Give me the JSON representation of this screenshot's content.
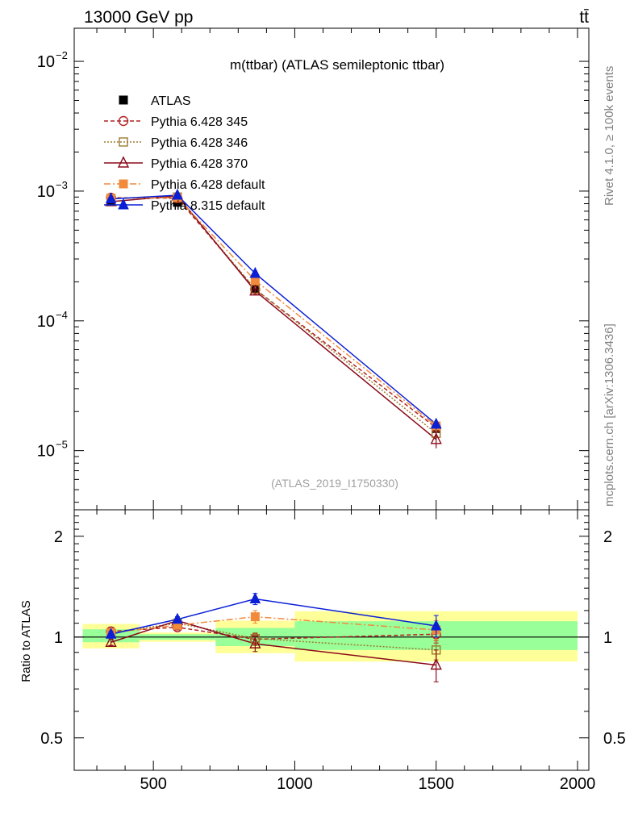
{
  "header": {
    "energy_label": "13000 GeV pp",
    "process_label": "tt̄"
  },
  "side_labels": {
    "rivet": "Rivet 4.1.0, ≥ 100k events",
    "mcplots": "mcplots.cern.ch [arXiv:1306.3436]"
  },
  "chart_data": [
    {
      "type": "line",
      "panel": "main",
      "title": "m(ttbar) (ATLAS semileptonic ttbar)",
      "watermark": "(ATLAS_2019_I1750330)",
      "yscale": "log",
      "xlim": [
        220,
        2040
      ],
      "ylim": [
        3.5e-06,
        0.018
      ],
      "ytick_values": [
        0.01,
        0.001,
        0.0001,
        1e-05
      ],
      "ytick_labels": [
        {
          "base": "10",
          "exp": "−2"
        },
        {
          "base": "10",
          "exp": "−3"
        },
        {
          "base": "10",
          "exp": "−4"
        },
        {
          "base": "10",
          "exp": "−5"
        }
      ],
      "x": [
        350,
        585,
        860,
        1500
      ],
      "series": [
        {
          "name": "ATLAS",
          "color": "#000000",
          "dash": "",
          "marker": "square-filled",
          "values": [
            0.00085,
            0.00082,
            0.000178,
            1.48e-05
          ],
          "err": [
            3e-05,
            3e-05,
            1.2e-05,
            2.5e-06
          ]
        },
        {
          "name": "Pythia 6.428 345",
          "color": "#b22222",
          "dash": "5,3",
          "marker": "circle-open",
          "values": [
            0.00089,
            0.00088,
            0.000175,
            1.5e-05
          ],
          "err": [
            2e-05,
            2e-05,
            8e-06,
            1.5e-06
          ]
        },
        {
          "name": "Pythia 6.428 346",
          "color": "#9c7a2d",
          "dash": "2,2",
          "marker": "square-open",
          "values": [
            0.00088,
            0.0009,
            0.000176,
            1.36e-05
          ],
          "err": [
            2e-05,
            2e-05,
            8e-06,
            1.5e-06
          ]
        },
        {
          "name": "Pythia 6.428 370",
          "color": "#8b0a1a",
          "dash": "",
          "marker": "triangle-open",
          "values": [
            0.00083,
            0.00092,
            0.00017,
            1.22e-05
          ],
          "err": [
            2e-05,
            2e-05,
            8e-06,
            1.8e-06
          ]
        },
        {
          "name": "Pythia 6.428 default",
          "color": "#f28a3c",
          "dash": "8,3,2,3",
          "marker": "square-filled",
          "values": [
            0.00088,
            0.00089,
            0.000205,
            1.55e-05
          ],
          "err": [
            2e-05,
            2e-05,
            9e-06,
            1.5e-06
          ]
        },
        {
          "name": "Pythia 8.315 default",
          "color": "#0a1fd6",
          "dash": "",
          "marker": "triangle-filled",
          "values": [
            0.00087,
            0.00093,
            0.000232,
            1.6e-05
          ],
          "err": [
            2e-05,
            2e-05,
            9e-06,
            1.5e-06
          ]
        }
      ]
    },
    {
      "type": "line",
      "panel": "ratio",
      "ylabel": "Ratio to ATLAS",
      "yscale": "log",
      "xlim": [
        220,
        2040
      ],
      "ylim": [
        0.4,
        2.4
      ],
      "ytick_values": [
        2,
        1,
        0.5
      ],
      "ytick_labels": [
        "2",
        "1",
        "0.5"
      ],
      "xtick_values": [
        500,
        1000,
        1500,
        2000
      ],
      "xtick_labels": [
        "500",
        "1000",
        "1500",
        "2000"
      ],
      "bands": [
        {
          "x0": 250,
          "x1": 450,
          "inner": [
            0.965,
            1.055
          ],
          "outer": [
            0.925,
            1.095
          ]
        },
        {
          "x0": 450,
          "x1": 720,
          "inner": [
            0.982,
            1.02
          ],
          "outer": [
            0.968,
            1.032
          ]
        },
        {
          "x0": 720,
          "x1": 1000,
          "inner": [
            0.94,
            1.065
          ],
          "outer": [
            0.895,
            1.12
          ]
        },
        {
          "x0": 1000,
          "x1": 2000,
          "inner": [
            0.915,
            1.115
          ],
          "outer": [
            0.845,
            1.195
          ]
        }
      ],
      "band_colors": {
        "inner": "#99ff99",
        "outer": "#ffff99"
      },
      "x": [
        350,
        585,
        860,
        1500
      ],
      "series": [
        {
          "name": "Pythia 6.428 345",
          "values": [
            1.04,
            1.07,
            0.985,
            1.02
          ],
          "err": [
            0.02,
            0.02,
            0.04,
            0.06
          ]
        },
        {
          "name": "Pythia 6.428 346",
          "values": [
            1.03,
            1.1,
            0.99,
            0.915
          ],
          "err": [
            0.02,
            0.02,
            0.04,
            0.06
          ]
        },
        {
          "name": "Pythia 6.428 370",
          "values": [
            0.965,
            1.12,
            0.955,
            0.825
          ],
          "err": [
            0.02,
            0.02,
            0.05,
            0.09
          ]
        },
        {
          "name": "Pythia 6.428 default",
          "values": [
            1.03,
            1.085,
            1.15,
            1.05
          ],
          "err": [
            0.02,
            0.02,
            0.05,
            0.07
          ]
        },
        {
          "name": "Pythia 8.315 default",
          "values": [
            1.02,
            1.13,
            1.3,
            1.08
          ],
          "err": [
            0.02,
            0.02,
            0.05,
            0.08
          ]
        }
      ]
    }
  ]
}
